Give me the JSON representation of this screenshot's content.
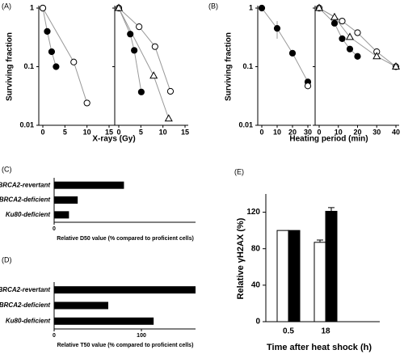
{
  "chart_data": [
    {
      "type": "scatter",
      "label": "(A)",
      "ylabel": "Surviving fraction",
      "xlabel": "X-rays (Gy)",
      "log_y": true,
      "ylim": [
        0.01,
        1
      ],
      "yticks": [
        1,
        0.1,
        0.01
      ],
      "xlim": [
        0,
        15
      ],
      "xticks": [
        0,
        5,
        10,
        15
      ],
      "line_color": "#999999",
      "subplots": [
        {
          "series": [
            {
              "marker": "filled-circle",
              "color": "#000000",
              "x": [
                0,
                1,
                2,
                3
              ],
              "values": [
                1,
                0.4,
                0.18,
                0.1
              ]
            },
            {
              "marker": "open-circle",
              "color": "#000000",
              "x": [
                0,
                7,
                10
              ],
              "values": [
                1,
                0.12,
                0.024
              ]
            }
          ]
        },
        {
          "series": [
            {
              "marker": "filled-circle",
              "color": "#000000",
              "x": [
                0,
                2.6,
                3.5,
                5.1
              ],
              "values": [
                1,
                0.36,
                0.19,
                0.037
              ]
            },
            {
              "marker": "open-circle",
              "color": "#000000",
              "x": [
                0,
                4.6,
                8.2,
                11.7
              ],
              "values": [
                1,
                0.48,
                0.22,
                0.038
              ]
            },
            {
              "marker": "open-triangle",
              "color": "#000000",
              "x": [
                0,
                7.9,
                11.3
              ],
              "values": [
                1,
                0.07,
                0.013
              ]
            }
          ]
        }
      ]
    },
    {
      "type": "scatter",
      "label": "(B)",
      "ylabel": "Surviving fraction",
      "xlabel": "Heating period (min)",
      "log_y": true,
      "ylim": [
        0.01,
        1
      ],
      "yticks": [
        1,
        0.1,
        0.01
      ],
      "line_color": "#999999",
      "subplots": [
        {
          "xlim": [
            0,
            30
          ],
          "xticks": [
            0,
            10,
            20,
            30
          ],
          "series": [
            {
              "marker": "filled-circle",
              "color": "#000000",
              "x": [
                0,
                10,
                20,
                30
              ],
              "values": [
                1,
                0.45,
                0.17,
                0.055
              ],
              "errors": [
                null,
                0.15,
                null,
                null
              ]
            },
            {
              "marker": "open-circle",
              "color": "#000000",
              "x": [
                30
              ],
              "values": [
                0.047
              ]
            }
          ]
        },
        {
          "xlim": [
            0,
            40
          ],
          "xticks": [
            0,
            10,
            20,
            30,
            40
          ],
          "series": [
            {
              "marker": "filled-circle",
              "color": "#000000",
              "x": [
                0,
                8,
                12,
                16,
                20
              ],
              "values": [
                1,
                0.55,
                0.3,
                0.2,
                0.15
              ]
            },
            {
              "marker": "open-circle",
              "color": "#000000",
              "x": [
                0,
                12,
                20,
                30,
                40
              ],
              "values": [
                1,
                0.6,
                0.38,
                0.18,
                0.1
              ]
            },
            {
              "marker": "open-triangle",
              "color": "#000000",
              "x": [
                0,
                8,
                16,
                30,
                40
              ],
              "values": [
                1,
                0.7,
                0.32,
                0.15,
                0.1
              ]
            }
          ]
        }
      ]
    },
    {
      "type": "hbar",
      "label": "(C)",
      "xlabel": "Relative D50 value (% compared to proficient cells)",
      "categories": [
        "BRCA2-revertant",
        "BRCA2-deficient",
        "Ku80-deficient"
      ],
      "values": [
        80,
        27,
        17
      ],
      "color": "#000000",
      "xlim": [
        0,
        162
      ],
      "xticks": [
        0
      ]
    },
    {
      "type": "hbar",
      "label": "(D)",
      "xlabel": "Relative T50 value (% compared to proficient cells)",
      "categories": [
        "BRCA2-revertant",
        "BRCA2-deficient",
        "Ku80-deficient"
      ],
      "values": [
        162,
        62,
        114
      ],
      "color": "#000000",
      "xlim": [
        0,
        162
      ],
      "xticks": [
        0,
        100
      ]
    },
    {
      "type": "bar",
      "label": "(E)",
      "ylabel": "Relative γH2AX (%)",
      "xlabel": "Time after heat shock (h)",
      "categories": [
        "0.5",
        "18"
      ],
      "ylim": [
        0,
        140
      ],
      "yticks": [
        0,
        40,
        80,
        120
      ],
      "series": [
        {
          "color": "#ffffff",
          "values": [
            100,
            87
          ],
          "errors": [
            null,
            2.5
          ]
        },
        {
          "color": "#000000",
          "values": [
            100,
            121
          ],
          "errors": [
            null,
            4
          ]
        }
      ]
    }
  ]
}
